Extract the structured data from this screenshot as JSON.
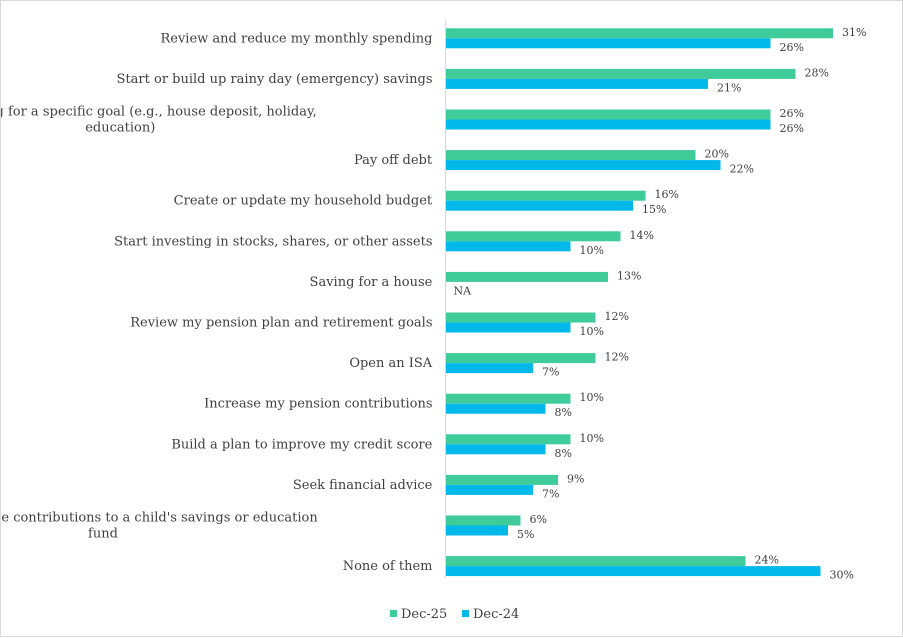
{
  "chart_data": {
    "type": "bar",
    "orientation": "horizontal",
    "categories": [
      "Review and reduce my monthly spending",
      "Start or build up rainy day (emergency) savings",
      "Start saving for a specific goal (e.g., house deposit, holiday, education)",
      "Pay off debt",
      "Create or update my household budget",
      "Start investing in stocks, shares, or other assets",
      "Saving for a house",
      "Review my pension plan and retirement goals",
      "Open an ISA",
      "Increase my pension contributions",
      "Build a plan to improve my credit score",
      "Seek financial advice",
      "Set up or increase contributions to a child's savings or education fund",
      "None of them"
    ],
    "category_lines": [
      [
        "Review and reduce my monthly spending"
      ],
      [
        "Start or build up rainy day (emergency) savings"
      ],
      [
        "Start saving for a specific goal (e.g., house deposit, holiday,",
        "education)"
      ],
      [
        "Pay off debt"
      ],
      [
        "Create or update my household budget"
      ],
      [
        "Start investing in stocks, shares, or other assets"
      ],
      [
        "Saving for a house"
      ],
      [
        "Review my pension plan and retirement goals"
      ],
      [
        "Open an ISA"
      ],
      [
        "Increase my pension contributions"
      ],
      [
        "Build a plan to improve my credit score"
      ],
      [
        "Seek financial advice"
      ],
      [
        "Set up or increase contributions to a child's savings or education",
        "fund"
      ],
      [
        "None of them"
      ]
    ],
    "series": [
      {
        "name": "Dec-25",
        "color": "#3FCB9A",
        "values": [
          31,
          28,
          26,
          20,
          16,
          14,
          13,
          12,
          12,
          10,
          10,
          9,
          6,
          24
        ],
        "labels": [
          "31%",
          "28%",
          "26%",
          "20%",
          "16%",
          "14%",
          "13%",
          "12%",
          "12%",
          "10%",
          "10%",
          "9%",
          "6%",
          "24%"
        ]
      },
      {
        "name": "Dec-24",
        "color": "#00B8EA",
        "values": [
          26,
          21,
          26,
          22,
          15,
          10,
          null,
          10,
          7,
          8,
          8,
          7,
          5,
          30
        ],
        "labels": [
          "26%",
          "21%",
          "26%",
          "22%",
          "15%",
          "10%",
          "NA",
          "10%",
          "7%",
          "8%",
          "8%",
          "7%",
          "5%",
          "30%"
        ]
      }
    ],
    "xlim": [
      0,
      34
    ],
    "grid": false,
    "legend_position": "bottom"
  }
}
